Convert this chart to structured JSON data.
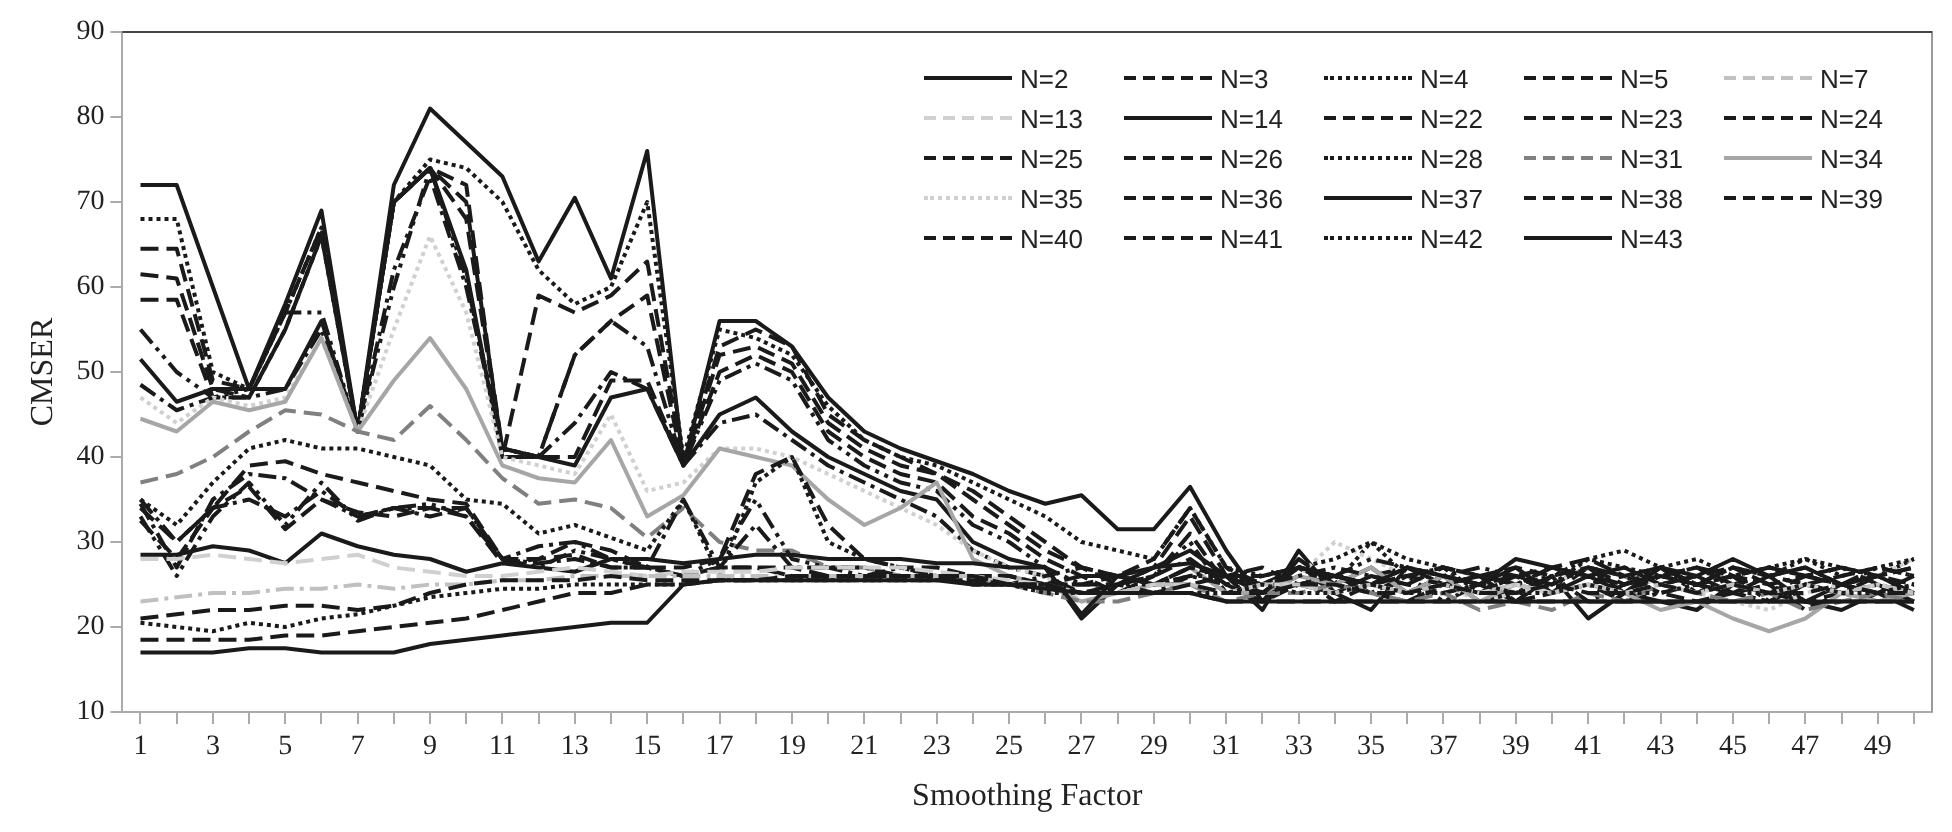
{
  "chart_data": {
    "type": "line",
    "xlabel": "Smoothing Factor",
    "ylabel": "CMSER",
    "x": [
      1,
      2,
      3,
      4,
      5,
      6,
      7,
      8,
      9,
      10,
      11,
      12,
      13,
      14,
      15,
      16,
      17,
      18,
      19,
      20,
      21,
      22,
      23,
      24,
      25,
      26,
      27,
      28,
      29,
      30,
      31,
      32,
      33,
      34,
      35,
      36,
      37,
      38,
      39,
      40,
      41,
      42,
      43,
      44,
      45,
      46,
      47,
      48,
      49,
      50
    ],
    "xlim": [
      0.5,
      50.5
    ],
    "xticks": [
      1,
      {
        "value": 2,
        "label": null
      },
      3,
      {
        "value": 4,
        "label": null
      },
      5,
      {
        "value": 6,
        "label": null
      },
      7,
      {
        "value": 8,
        "label": null
      },
      9,
      {
        "value": 10,
        "label": null
      },
      11,
      {
        "value": 12,
        "label": null
      },
      13,
      {
        "value": 14,
        "label": null
      },
      15,
      {
        "value": 16,
        "label": null
      },
      17,
      {
        "value": 18,
        "label": null
      },
      19,
      {
        "value": 20,
        "label": null
      },
      21,
      {
        "value": 22,
        "label": null
      },
      23,
      {
        "value": 24,
        "label": null
      },
      25,
      {
        "value": 26,
        "label": null
      },
      27,
      {
        "value": 28,
        "label": null
      },
      29,
      {
        "value": 30,
        "label": null
      },
      31,
      {
        "value": 32,
        "label": null
      },
      33,
      {
        "value": 34,
        "label": null
      },
      35,
      {
        "value": 36,
        "label": null
      },
      37,
      {
        "value": 38,
        "label": null
      },
      39,
      {
        "value": 40,
        "label": null
      },
      41,
      {
        "value": 42,
        "label": null
      },
      43,
      {
        "value": 44,
        "label": null
      },
      45,
      {
        "value": 46,
        "label": null
      },
      47,
      {
        "value": 48,
        "label": null
      },
      49,
      {
        "value": 50,
        "label": null
      }
    ],
    "ylim": [
      10,
      90
    ],
    "yticks": [
      10,
      20,
      30,
      40,
      50,
      60,
      70,
      80,
      90
    ],
    "grid": false,
    "legend": "top right",
    "marker": "none",
    "series": [
      {
        "name": "N=2",
        "color": "#1a1a1a",
        "line_style": "solid",
        "values": [
          17,
          17,
          17,
          17.5,
          17.5,
          17,
          17,
          17,
          18,
          18.5,
          19,
          19.5,
          20,
          20.5,
          20.5,
          25,
          25.5,
          25.5,
          25.5,
          25.5,
          25.5,
          25.5,
          25.5,
          25,
          25,
          24.5,
          24,
          24,
          24,
          24,
          23,
          23,
          23,
          23,
          23,
          23,
          23,
          23,
          23,
          23,
          23,
          23,
          23,
          23,
          23,
          23,
          23,
          23,
          23,
          23
        ]
      },
      {
        "name": "N=3",
        "color": "#1a1a1a",
        "line_style": "dashed",
        "values": [
          18.5,
          18.5,
          18.5,
          18.5,
          19,
          19,
          19.5,
          20,
          20.5,
          21,
          22,
          23,
          24,
          24,
          25,
          25,
          25.5,
          25.5,
          25.5,
          25.5,
          25.5,
          25.5,
          25.5,
          25.5,
          25,
          25,
          24,
          24,
          24,
          24,
          23,
          23,
          23,
          23,
          23,
          23,
          23,
          23,
          23,
          23,
          23,
          23,
          23,
          23,
          23,
          23,
          23,
          23,
          23,
          23
        ]
      },
      {
        "name": "N=4",
        "color": "#1a1a1a",
        "line_style": "dotted",
        "values": [
          20.5,
          20,
          19.5,
          20.5,
          20,
          21,
          21.5,
          22.5,
          23.5,
          24,
          24.5,
          24.5,
          25,
          25,
          25,
          25,
          25.5,
          25.5,
          25.5,
          25.5,
          25.5,
          25.5,
          25.5,
          25.5,
          25,
          25,
          24,
          24,
          24,
          24,
          24,
          25,
          24,
          24,
          25,
          24,
          24,
          25,
          24,
          24,
          25,
          24,
          24,
          25,
          24,
          24,
          25,
          24,
          24,
          25
        ]
      },
      {
        "name": "N=5",
        "color": "#1a1a1a",
        "line_style": "dashed",
        "values": [
          21,
          21.5,
          22,
          22,
          22.5,
          22.5,
          22,
          22.5,
          24,
          25,
          25.5,
          25.5,
          25.5,
          26,
          25.5,
          25.5,
          25.5,
          25.5,
          26,
          26,
          26,
          26,
          26,
          26,
          25,
          25,
          24,
          24,
          24,
          25,
          24,
          24,
          25,
          25,
          24,
          24,
          25,
          24,
          24,
          25,
          24,
          24,
          25,
          24,
          25,
          24,
          24,
          25,
          24,
          24
        ]
      },
      {
        "name": "N=7",
        "color": "#c0c0c0",
        "line_style": "dashdot",
        "values": [
          23,
          23.5,
          24,
          24,
          24.5,
          24.5,
          25,
          24.5,
          25,
          25,
          25.5,
          25.5,
          26,
          26,
          26,
          26,
          26,
          26,
          26,
          26,
          26,
          26,
          26,
          26,
          25,
          25,
          24,
          24,
          25,
          25,
          24,
          25,
          25,
          24,
          25,
          24,
          25,
          24,
          25,
          24,
          25,
          24,
          25,
          24,
          25,
          24,
          25,
          24,
          25,
          24
        ]
      },
      {
        "name": "N=13",
        "color": "#d0d0d0",
        "line_style": "dashed",
        "values": [
          28,
          28,
          28.5,
          28,
          27.5,
          28,
          28.5,
          27,
          26.5,
          26,
          26,
          26.5,
          27,
          26.5,
          26,
          26.5,
          26.5,
          26.5,
          27,
          27,
          27,
          27,
          26.5,
          26,
          25.5,
          25,
          24,
          24,
          25,
          25,
          24,
          25,
          25,
          24,
          25,
          24,
          25,
          24,
          25,
          24,
          25,
          24,
          25,
          24,
          25,
          24,
          25,
          24,
          25,
          24
        ]
      },
      {
        "name": "N=14",
        "color": "#1a1a1a",
        "line_style": "solid",
        "values": [
          28.5,
          28.5,
          29.5,
          29,
          27.5,
          31,
          29.5,
          28.5,
          28,
          26.5,
          27.5,
          27,
          26.5,
          28,
          28,
          27.5,
          28,
          28.5,
          28.5,
          28,
          28,
          28,
          27.5,
          27.5,
          27,
          27,
          21.5,
          26,
          27,
          27.5,
          26,
          24,
          27,
          26,
          25,
          27,
          26,
          25,
          28,
          27,
          26,
          27,
          25,
          26,
          24,
          26,
          27,
          25,
          26,
          24
        ]
      },
      {
        "name": "N=22",
        "color": "#1a1a1a",
        "line_style": "dashdot",
        "values": [
          35,
          30,
          34,
          35,
          33,
          36,
          33,
          34,
          33,
          34,
          28,
          27.5,
          28,
          27,
          27,
          26,
          27,
          27,
          26,
          26,
          26,
          26,
          26,
          26,
          25,
          25,
          25,
          25,
          24,
          26,
          25,
          26,
          27,
          26,
          25,
          26,
          27,
          26,
          25,
          27,
          26,
          25,
          26,
          27,
          26,
          25,
          26,
          27,
          25,
          24
        ]
      },
      {
        "name": "N=23",
        "color": "#1a1a1a",
        "line_style": "dashed",
        "values": [
          32.5,
          28,
          34,
          36.5,
          31.5,
          35,
          33.5,
          33,
          34,
          33,
          27.5,
          28,
          28.5,
          27,
          27,
          26,
          27,
          27,
          27,
          26,
          26,
          26,
          26,
          25,
          25,
          25,
          26,
          26,
          25,
          25,
          26,
          27,
          25,
          26,
          25,
          27,
          26,
          25,
          26,
          27,
          28,
          26,
          27,
          25,
          26,
          27,
          26,
          27,
          26,
          27
        ]
      },
      {
        "name": "N=24",
        "color": "#1a1a1a",
        "line_style": "dashdotdot",
        "values": [
          33,
          26,
          33,
          37,
          32,
          37,
          32.5,
          34,
          34.5,
          33,
          28,
          27,
          29,
          28,
          27,
          26,
          28,
          35,
          28,
          27,
          26,
          27,
          26,
          26,
          26,
          25,
          26,
          26,
          25,
          27,
          26,
          25,
          27,
          26,
          28,
          27,
          26,
          27,
          26,
          25,
          27,
          26,
          27,
          25,
          26,
          27,
          26,
          25,
          27,
          26
        ]
      },
      {
        "name": "N=25",
        "color": "#1a1a1a",
        "line_style": "dashdot",
        "values": [
          34.5,
          27,
          35,
          38,
          37.5,
          35,
          33,
          34,
          34,
          34,
          28,
          29.5,
          30,
          28,
          27,
          35,
          27,
          32,
          27,
          27,
          27,
          26,
          26,
          26,
          25,
          26,
          27,
          26,
          25,
          26,
          26,
          25,
          26,
          27,
          26,
          25,
          27,
          26,
          25,
          27,
          26,
          25,
          26,
          27,
          25,
          26,
          27,
          25,
          26,
          27
        ]
      },
      {
        "name": "N=26",
        "color": "#1a1a1a",
        "line_style": "dashed",
        "values": [
          34,
          30,
          34,
          39,
          39.5,
          38,
          37,
          36,
          35,
          34.5,
          28,
          28,
          30,
          29,
          27,
          27,
          28,
          38,
          40,
          32,
          28,
          27,
          27,
          26,
          26,
          25,
          25,
          26,
          25,
          27,
          26,
          26,
          27,
          26,
          25,
          26,
          25,
          26,
          27,
          26,
          27,
          26,
          25,
          26,
          27,
          26,
          25,
          26,
          27,
          26
        ]
      },
      {
        "name": "N=28",
        "color": "#1a1a1a",
        "line_style": "dotted",
        "values": [
          35,
          32,
          37,
          41,
          42,
          41,
          41,
          40,
          39,
          35,
          34.5,
          31,
          32,
          30.5,
          29,
          35,
          26,
          37,
          40,
          30,
          28,
          27,
          26,
          25,
          25,
          24,
          24,
          25,
          25,
          26,
          27,
          26,
          27,
          28,
          30,
          28,
          27,
          26,
          25,
          26,
          28,
          29,
          27,
          28,
          26,
          27,
          28,
          26,
          27,
          28
        ]
      },
      {
        "name": "N=31",
        "color": "#808080",
        "line_style": "dashed",
        "values": [
          37,
          38,
          40,
          43,
          45.5,
          45,
          43,
          42,
          46,
          42,
          37.5,
          34.5,
          35,
          34,
          30.5,
          34,
          30,
          29,
          29,
          27,
          27,
          26,
          26,
          25,
          25,
          24,
          23,
          23,
          24,
          25,
          23,
          24,
          24,
          25,
          24,
          23,
          24,
          22,
          23,
          22,
          24,
          23,
          25,
          24,
          23,
          24,
          22,
          23,
          24,
          23
        ]
      },
      {
        "name": "N=34",
        "color": "#a6a6a6",
        "line_style": "solid",
        "values": [
          44.5,
          43,
          46.5,
          45.5,
          46.5,
          54,
          43,
          49,
          54,
          48,
          39,
          37.5,
          37,
          42,
          33,
          35.5,
          41,
          40,
          39,
          35,
          32,
          34,
          37,
          28,
          26,
          25,
          23,
          24,
          25,
          27,
          24,
          24,
          26,
          25,
          27,
          24,
          26,
          23,
          25,
          24,
          25,
          24,
          22,
          23,
          21,
          19.5,
          21,
          24,
          23,
          24
        ]
      },
      {
        "name": "N=35",
        "color": "#d0d0d0",
        "line_style": "dotted",
        "values": [
          47,
          44,
          47,
          46,
          47,
          54,
          43,
          55,
          66,
          57,
          40,
          39,
          38,
          45,
          36,
          37,
          41,
          41,
          40,
          38,
          36,
          34,
          32,
          29,
          27,
          26,
          23,
          24,
          25,
          27,
          24,
          25,
          26,
          30,
          28,
          26,
          25,
          23,
          24,
          25,
          27,
          26,
          25,
          24,
          23,
          22,
          24,
          25,
          26,
          28
        ]
      },
      {
        "name": "N=36",
        "color": "#1a1a1a",
        "line_style": "dashdot",
        "values": [
          48.5,
          45.5,
          47,
          47,
          48,
          55,
          43,
          62,
          73,
          60,
          41,
          40,
          44,
          50,
          48,
          39,
          44,
          45,
          42,
          39,
          37,
          35,
          33,
          29,
          27,
          26,
          24,
          25,
          26,
          28,
          25,
          24,
          25,
          26,
          24,
          23,
          25,
          24,
          26,
          24,
          25,
          23,
          24,
          25,
          24,
          23,
          25,
          24,
          26,
          25
        ]
      },
      {
        "name": "N=37",
        "color": "#1a1a1a",
        "line_style": "solid",
        "values": [
          51.5,
          46.5,
          48,
          48,
          48,
          56,
          43,
          70,
          74,
          62,
          40,
          40,
          39,
          47,
          48,
          39,
          45,
          47,
          43,
          40,
          38,
          36,
          35,
          30,
          28,
          27,
          21,
          25,
          27,
          29,
          26,
          22,
          29,
          24,
          22,
          27,
          25,
          26,
          23,
          26,
          21,
          24,
          23,
          22,
          25,
          24,
          23,
          22,
          24,
          26
        ]
      },
      {
        "name": "N=38",
        "color": "#1a1a1a",
        "line_style": "dashdotdot",
        "values": [
          55,
          50,
          47,
          48,
          57,
          57,
          43,
          60,
          74,
          61,
          41,
          40,
          52,
          56,
          53,
          39,
          49,
          51,
          49,
          42,
          39,
          37,
          36,
          32,
          30,
          27,
          25,
          25,
          26,
          30,
          24,
          24,
          27,
          25,
          24,
          26,
          23,
          25,
          24,
          26,
          23,
          25,
          27,
          24,
          26,
          23,
          25,
          24,
          25,
          23
        ]
      },
      {
        "name": "N=39",
        "color": "#1a1a1a",
        "line_style": "dashed",
        "values": [
          58.5,
          58.5,
          47,
          47,
          55,
          66,
          43,
          70,
          74,
          68,
          41,
          40,
          40,
          49,
          49,
          39,
          50,
          52,
          50,
          43,
          40,
          38,
          37,
          33,
          31,
          28,
          26,
          24,
          26,
          31,
          25,
          23,
          25,
          24,
          26,
          25,
          24,
          25,
          23,
          24,
          25,
          26,
          24,
          23,
          24,
          25,
          22,
          24,
          23,
          24
        ]
      },
      {
        "name": "N=40",
        "color": "#1a1a1a",
        "line_style": "dashed",
        "values": [
          61.5,
          61,
          48,
          47,
          55,
          66,
          43,
          70,
          74,
          70,
          41,
          40,
          52,
          56,
          59,
          39,
          52,
          53,
          51,
          44,
          41,
          39,
          38,
          35,
          32,
          29,
          27,
          25,
          27,
          33,
          26,
          24,
          26,
          23,
          25,
          24,
          26,
          23,
          24,
          25,
          27,
          24,
          26,
          25,
          27,
          25,
          23,
          24,
          25,
          23
        ]
      },
      {
        "name": "N=41",
        "color": "#1a1a1a",
        "line_style": "dashed",
        "values": [
          64.5,
          64.5,
          49,
          48,
          57,
          67,
          43,
          70,
          74,
          72,
          40,
          59,
          57,
          59,
          63,
          39,
          53,
          55,
          53,
          45,
          42,
          40,
          38,
          36,
          33,
          30,
          27,
          26,
          28,
          34,
          27,
          25,
          27,
          24,
          26,
          27,
          25,
          26,
          26,
          24,
          27,
          25,
          26,
          27,
          25,
          24,
          26,
          25,
          26,
          24
        ]
      },
      {
        "name": "N=42",
        "color": "#1a1a1a",
        "line_style": "dotted",
        "values": [
          68,
          68,
          50,
          48,
          57,
          67,
          43,
          70,
          75,
          74,
          70,
          62,
          58,
          60,
          70,
          40,
          55,
          54,
          52,
          46,
          42,
          40,
          39,
          37,
          35,
          33,
          30,
          29,
          28,
          34,
          27,
          24,
          27,
          25,
          30,
          26,
          27,
          24,
          26,
          25,
          28,
          27,
          26,
          25,
          27,
          26,
          28,
          27,
          26,
          28
        ]
      },
      {
        "name": "N=43",
        "color": "#1a1a1a",
        "line_style": "solid",
        "values": [
          72,
          72,
          60,
          48,
          58,
          69,
          43,
          72,
          81,
          77,
          73,
          63,
          70.5,
          61,
          76,
          39,
          56,
          56,
          53,
          47,
          43,
          41,
          39.5,
          38,
          36,
          34.5,
          35.5,
          31.5,
          31.5,
          36.5,
          29,
          23,
          28,
          25,
          27,
          24,
          26,
          25,
          27,
          24,
          26,
          24,
          27,
          26,
          28,
          26,
          23,
          25,
          24,
          22
        ]
      }
    ]
  }
}
